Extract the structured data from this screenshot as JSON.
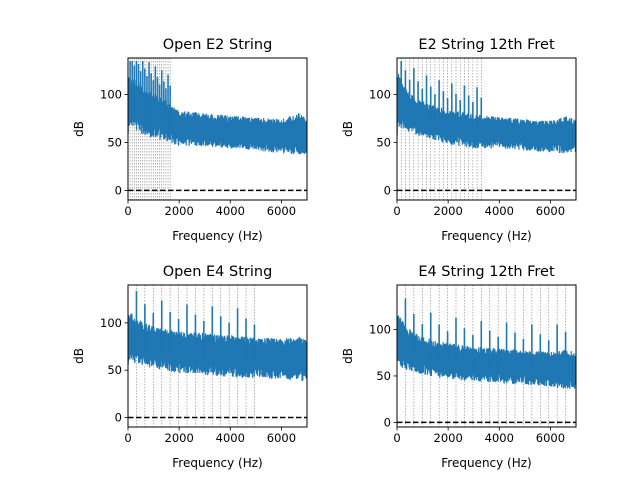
{
  "figure": {
    "background": "#ffffff",
    "line_color": "#1f77b4",
    "harmonic_line_color": "#808080",
    "zero_line_color": "#000000"
  },
  "chart_data": [
    {
      "type": "line",
      "title": "Open E2 String",
      "xlabel": "Frequency (Hz)",
      "ylabel": "dB",
      "xlim": [
        0,
        7000
      ],
      "ylim": [
        -10,
        138
      ],
      "xticks": [
        0,
        2000,
        4000,
        6000
      ],
      "xtick_labels": [
        "0",
        "2000",
        "4000",
        "6000"
      ],
      "yticks": [
        0,
        50,
        100
      ],
      "ytick_labels": [
        "0",
        "50",
        "100"
      ],
      "grid": false,
      "fundamental_hz": 82.41,
      "harmonic_markers_hz": [
        82,
        165,
        247,
        330,
        412,
        494,
        577,
        659,
        742,
        824,
        906,
        989,
        1071,
        1154,
        1236,
        1319,
        1401,
        1483,
        1566,
        1648
      ],
      "zero_line": {
        "y": 0,
        "style": "dashed"
      },
      "spectrum_envelope": {
        "x": [
          0,
          30,
          300,
          800,
          1500,
          2000,
          3000,
          4000,
          5000,
          6000,
          6700,
          7000
        ],
        "upper": [
          92,
          130,
          120,
          110,
          98,
          88,
          84,
          82,
          80,
          78,
          86,
          78
        ],
        "lower": [
          35,
          58,
          56,
          50,
          46,
          42,
          42,
          40,
          38,
          34,
          32,
          34
        ]
      }
    },
    {
      "type": "line",
      "title": "E2 String 12th Fret",
      "xlabel": "Frequency (Hz)",
      "ylabel": "dB",
      "xlim": [
        0,
        7000
      ],
      "ylim": [
        -10,
        138
      ],
      "xticks": [
        0,
        2000,
        4000,
        6000
      ],
      "xtick_labels": [
        "0",
        "2000",
        "4000",
        "6000"
      ],
      "yticks": [
        0,
        50,
        100
      ],
      "ytick_labels": [
        "0",
        "50",
        "100"
      ],
      "grid": false,
      "fundamental_hz": 164.81,
      "harmonic_markers_hz": [
        165,
        330,
        494,
        659,
        824,
        989,
        1154,
        1319,
        1483,
        1648,
        1813,
        1978,
        2143,
        2307,
        2472,
        2637,
        2802,
        2967,
        3131,
        3296
      ],
      "zero_line": {
        "y": 0,
        "style": "dashed"
      },
      "spectrum_envelope": {
        "x": [
          0,
          30,
          300,
          800,
          1500,
          2000,
          3000,
          4000,
          5000,
          6000,
          6700,
          7000
        ],
        "upper": [
          90,
          130,
          112,
          100,
          92,
          88,
          84,
          80,
          78,
          76,
          82,
          76
        ],
        "lower": [
          40,
          60,
          58,
          52,
          48,
          44,
          40,
          40,
          38,
          36,
          34,
          36
        ]
      }
    },
    {
      "type": "line",
      "title": "Open E4 String",
      "xlabel": "Frequency (Hz)",
      "ylabel": "dB",
      "xlim": [
        0,
        7000
      ],
      "ylim": [
        -10,
        140
      ],
      "xticks": [
        0,
        2000,
        4000,
        6000
      ],
      "xtick_labels": [
        "0",
        "2000",
        "4000",
        "6000"
      ],
      "yticks": [
        0,
        50,
        100
      ],
      "ytick_labels": [
        "0",
        "50",
        "100"
      ],
      "grid": false,
      "fundamental_hz": 329.63,
      "harmonic_markers_hz": [
        330,
        659,
        989,
        1319,
        1648,
        1978,
        2307,
        2637,
        2967,
        3296,
        3626,
        3956,
        4285,
        4615,
        4944
      ],
      "zero_line": {
        "y": 0,
        "style": "dashed"
      },
      "spectrum_envelope": {
        "x": [
          0,
          30,
          300,
          800,
          1500,
          2000,
          3000,
          4000,
          5000,
          6000,
          6700,
          7000
        ],
        "upper": [
          95,
          120,
          110,
          104,
          98,
          96,
          94,
          92,
          90,
          88,
          92,
          86
        ],
        "lower": [
          45,
          55,
          52,
          48,
          44,
          42,
          40,
          38,
          36,
          36,
          32,
          34
        ]
      }
    },
    {
      "type": "line",
      "title": "E4 String 12th Fret",
      "xlabel": "Frequency (Hz)",
      "ylabel": "dB",
      "xlim": [
        0,
        7000
      ],
      "ylim": [
        -5,
        148
      ],
      "xticks": [
        0,
        2000,
        4000,
        6000
      ],
      "xtick_labels": [
        "0",
        "2000",
        "4000",
        "6000"
      ],
      "yticks": [
        0,
        50,
        100
      ],
      "ytick_labels": [
        "0",
        "50",
        "100"
      ],
      "grid": false,
      "fundamental_hz": 659.26,
      "harmonic_markers_hz": [
        330,
        659,
        989,
        1319,
        1648,
        1978,
        2307,
        2637,
        2967,
        3296,
        3626,
        3956,
        4285,
        4615,
        4944,
        5274,
        5604,
        5933,
        6263,
        6593
      ],
      "zero_line": {
        "y": 0,
        "style": "dashed"
      },
      "spectrum_envelope": {
        "x": [
          0,
          30,
          300,
          800,
          1500,
          2000,
          3000,
          4000,
          5000,
          6000,
          6700,
          7000
        ],
        "upper": [
          95,
          128,
          110,
          100,
          92,
          90,
          86,
          84,
          82,
          80,
          84,
          80
        ],
        "lower": [
          48,
          55,
          52,
          48,
          44,
          42,
          40,
          38,
          36,
          34,
          30,
          32
        ]
      }
    }
  ]
}
